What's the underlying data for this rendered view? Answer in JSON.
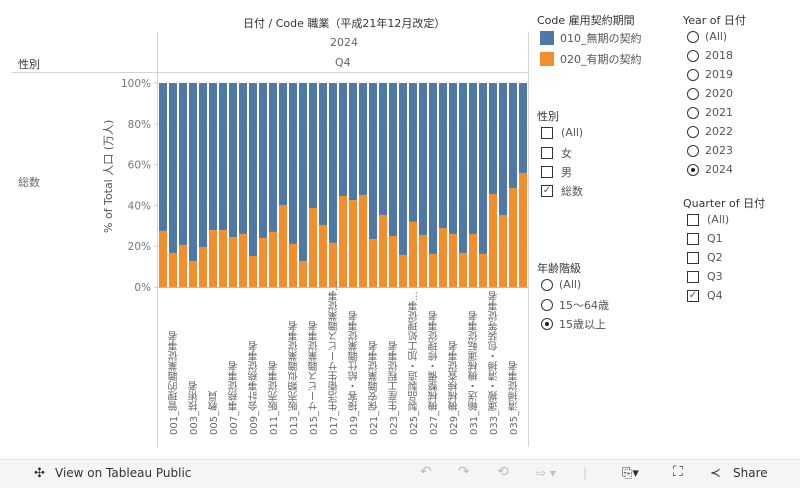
{
  "chart_data": {
    "type": "bar",
    "stacked": "100%",
    "title": "日付 / Code 職業（平成21年12月改定）",
    "column_header_year": "2024",
    "column_header_quarter": "Q4",
    "row_header_label": "性別",
    "row_value": "総数",
    "ylabel": "% of Total 人口 (万人)",
    "ylim": [
      0,
      100
    ],
    "yticks": [
      "100%",
      "80%",
      "60%",
      "40%",
      "20%",
      "0%"
    ],
    "categories": [
      "",
      "001_管理的職業従事者",
      "",
      "003_技術者",
      "",
      "005_教員",
      "",
      "007_事務従事者",
      "",
      "009_会計事務従事者",
      "",
      "011_販売従事者",
      "",
      "013_販売類似職業従事者",
      "",
      "015_サービス職業従事者",
      "",
      "017_生活衛生サービス職業従事...",
      "",
      "019_接客・給仕職業従事者",
      "",
      "021_保安職業従事者",
      "",
      "023_生産工程従事者",
      "",
      "025_製品製造・加工処理従事...",
      "",
      "027_機械整備・修理従事者",
      "",
      "029_機械検査従事者",
      "",
      "031_輸送・機械運転従事者",
      "",
      "033_運搬・清掃・包装等従事者",
      "",
      "035_清掃従事者",
      ""
    ],
    "series": [
      {
        "name": "010_無期の契約",
        "color": "#4e79a7",
        "values": [
          72.5,
          83.3,
          79.4,
          87.3,
          80.4,
          72.1,
          72.1,
          75.5,
          74.0,
          84.8,
          76.0,
          73.0,
          59.8,
          78.9,
          87.3,
          61.3,
          69.6,
          78.4,
          55.4,
          57.4,
          54.9,
          76.5,
          64.7,
          75.0,
          84.3,
          68.1,
          74.5,
          83.8,
          71.1,
          74.0,
          83.3,
          74.0,
          83.8,
          54.4,
          64.7,
          51.5,
          44.1
        ]
      },
      {
        "name": "020_有期の契約",
        "color": "#f28e2b",
        "values": [
          27.5,
          16.7,
          20.6,
          12.7,
          19.6,
          27.9,
          27.9,
          24.5,
          26.0,
          15.2,
          24.0,
          27.0,
          40.2,
          21.1,
          12.7,
          38.7,
          30.4,
          21.6,
          44.6,
          42.6,
          45.1,
          23.5,
          35.3,
          25.0,
          15.7,
          31.9,
          25.5,
          16.2,
          28.9,
          26.0,
          16.7,
          26.0,
          16.2,
          45.6,
          35.3,
          48.5,
          55.9
        ]
      }
    ],
    "legend_title": "Code 雇用契約期間",
    "legend_placement": "right"
  },
  "filters": {
    "gender": {
      "title": "性別",
      "options": [
        {
          "label": "(All)",
          "checked": false
        },
        {
          "label": "女",
          "checked": false
        },
        {
          "label": "男",
          "checked": false
        },
        {
          "label": "総数",
          "checked": true
        }
      ]
    },
    "age": {
      "title": "年齢階級",
      "options": [
        {
          "label": "(All)",
          "selected": false
        },
        {
          "label": "15〜64歳",
          "selected": false
        },
        {
          "label": "15歳以上",
          "selected": true
        }
      ]
    },
    "year": {
      "title": "Year of 日付",
      "options": [
        {
          "label": "(All)",
          "selected": false
        },
        {
          "label": "2018",
          "selected": false
        },
        {
          "label": "2019",
          "selected": false
        },
        {
          "label": "2020",
          "selected": false
        },
        {
          "label": "2021",
          "selected": false
        },
        {
          "label": "2022",
          "selected": false
        },
        {
          "label": "2023",
          "selected": false
        },
        {
          "label": "2024",
          "selected": true
        }
      ]
    },
    "quarter": {
      "title": "Quarter of 日付",
      "options": [
        {
          "label": "(All)",
          "checked": false
        },
        {
          "label": "Q1",
          "checked": false
        },
        {
          "label": "Q2",
          "checked": false
        },
        {
          "label": "Q3",
          "checked": false
        },
        {
          "label": "Q4",
          "checked": true
        }
      ]
    }
  },
  "toolbar": {
    "view_label": "View on Tableau Public",
    "share_label": "Share"
  }
}
